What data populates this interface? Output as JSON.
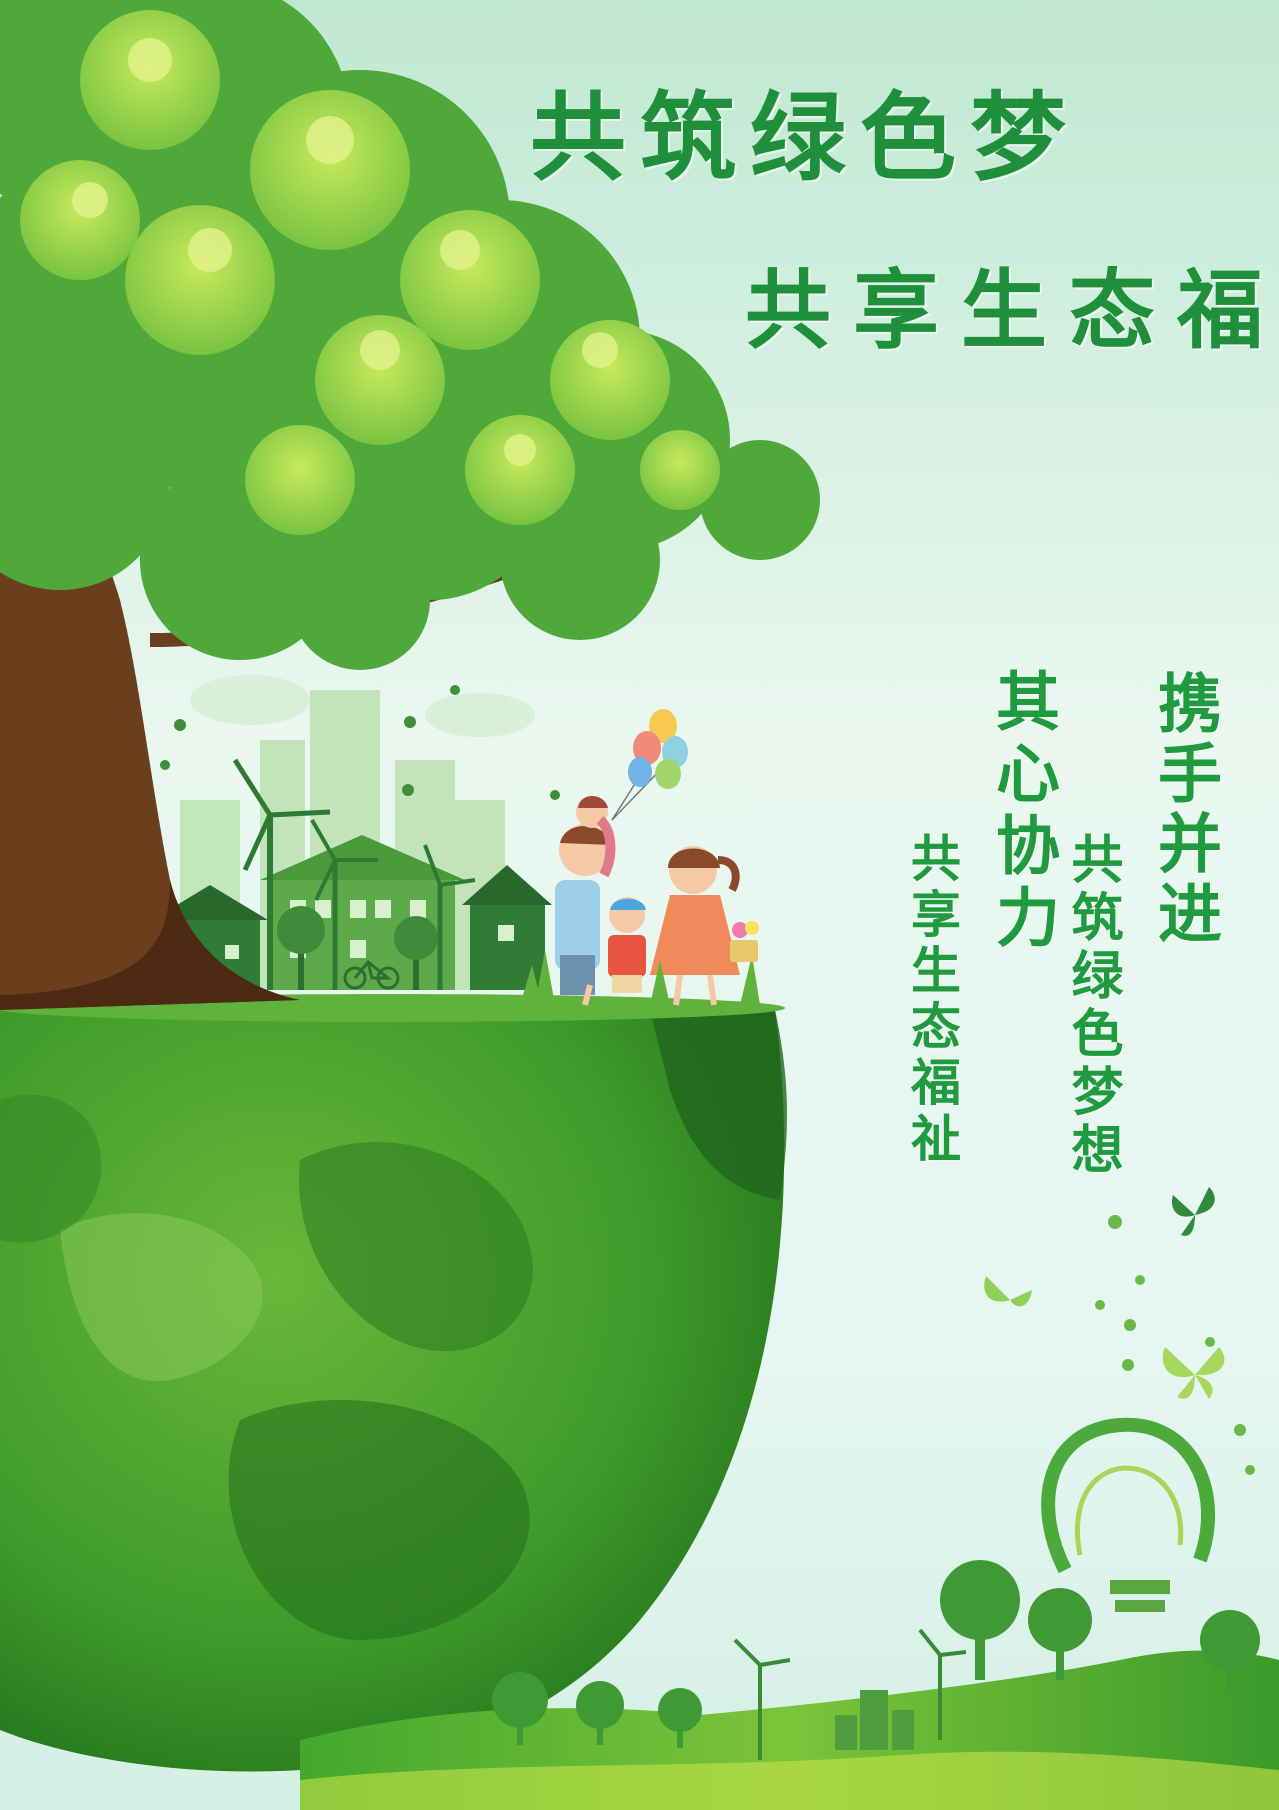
{
  "poster": {
    "title_line1": "共筑绿色梦",
    "title_line2": "共享生态福",
    "slogans": {
      "col1": "携手并进",
      "col2": "共筑绿色梦想",
      "col3": "其心协力",
      "col4": "共享生态福祉"
    }
  },
  "colors": {
    "title_green": "#1f8f3c",
    "globe_green": "#3e9b2a",
    "sky_mint": "#cfeedd"
  },
  "illustration": {
    "elements": [
      "tree-icon",
      "globe-icon",
      "city-skyline-icon",
      "wind-turbine-icon",
      "family-icon",
      "balloon-icon",
      "butterfly-icon",
      "lightbulb-icon"
    ]
  }
}
